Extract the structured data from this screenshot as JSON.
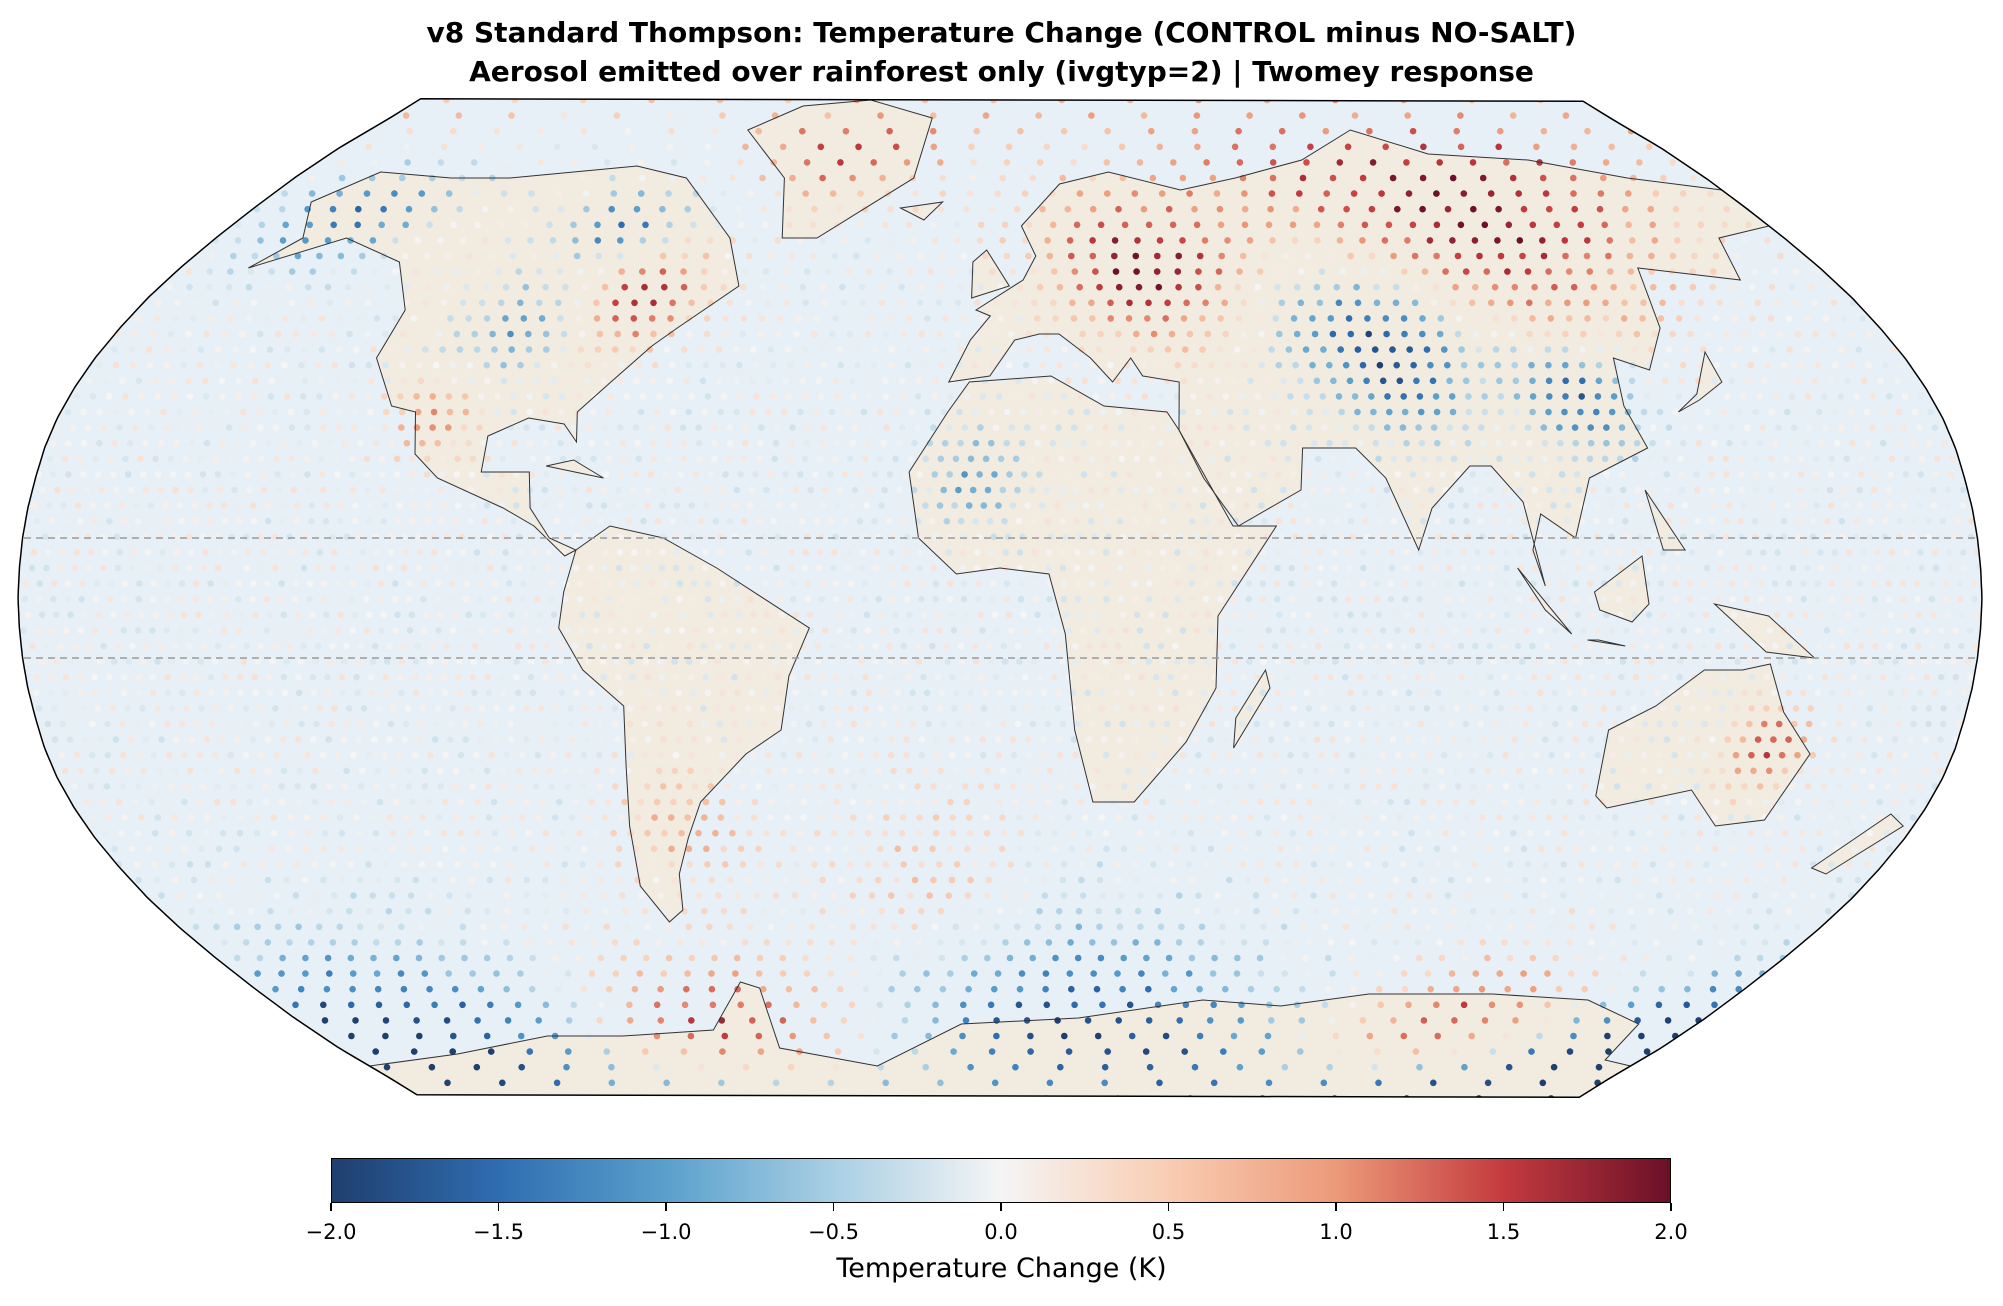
{
  "title_line1": "v8 Standard Thompson: Temperature Change (CONTROL minus NO-SALT)",
  "title_line2": "Aerosol emitted over rainforest only (ivgtyp=2) | Twomey response",
  "colorbar": {
    "label": "Temperature Change (K)",
    "colormap": "RdBu_r",
    "range": [
      -2.0,
      2.0
    ],
    "ticks": [
      "−2.0",
      "−1.5",
      "−1.0",
      "−0.5",
      "0.0",
      "0.5",
      "1.0",
      "1.5",
      "2.0"
    ],
    "stops": [
      "#1f3f6e",
      "#2f6db1",
      "#5aa0cc",
      "#a9cfe4",
      "#f5f5f5",
      "#f9cdb3",
      "#ec9a79",
      "#c43b3f",
      "#6b1028"
    ]
  },
  "chart_data": {
    "type": "scatter",
    "projection": "Robinson",
    "reference_lines_lat": [
      -10,
      10
    ],
    "land_color": "#f1ebe0",
    "ocean_color": "#e8f0f7",
    "regional_anomalies_K": [
      {
        "region": "Eastern Europe / Western Russia",
        "lon": 32,
        "lat": 55,
        "value": 2.0,
        "radius": 13
      },
      {
        "region": "Northern Siberia",
        "lon": 110,
        "lat": 64,
        "value": 2.0,
        "radius": 22
      },
      {
        "region": "Central Asia",
        "lon": 78,
        "lat": 42,
        "value": -2.0,
        "radius": 14
      },
      {
        "region": "Eastern China",
        "lon": 112,
        "lat": 34,
        "value": -1.7,
        "radius": 10
      },
      {
        "region": "Eastern Canada",
        "lon": -75,
        "lat": 50,
        "value": 1.8,
        "radius": 8
      },
      {
        "region": "Hudson Bay",
        "lon": -88,
        "lat": 62,
        "value": -1.5,
        "radius": 6
      },
      {
        "region": "Central USA",
        "lon": -100,
        "lat": 45,
        "value": -1.0,
        "radius": 8
      },
      {
        "region": "Southwest USA / Mexico",
        "lon": -108,
        "lat": 30,
        "value": 0.9,
        "radius": 8
      },
      {
        "region": "Alaska",
        "lon": -155,
        "lat": 64,
        "value": -1.5,
        "radius": 9
      },
      {
        "region": "Greenland",
        "lon": -40,
        "lat": 74,
        "value": 1.5,
        "radius": 8
      },
      {
        "region": "Western Sahara",
        "lon": -5,
        "lat": 20,
        "value": -1.0,
        "radius": 8
      },
      {
        "region": "Eastern Australia",
        "lon": 145,
        "lat": -25,
        "value": 1.5,
        "radius": 7
      },
      {
        "region": "Southern South America",
        "lon": -62,
        "lat": -38,
        "value": 0.8,
        "radius": 11
      },
      {
        "region": "South Atlantic",
        "lon": -15,
        "lat": -45,
        "value": 0.5,
        "radius": 14
      },
      {
        "region": "Antarctica Pacific sector",
        "lon": -150,
        "lat": -75,
        "value": -2.0,
        "radius": 18
      },
      {
        "region": "Antarctic Peninsula",
        "lon": -70,
        "lat": -75,
        "value": 2.0,
        "radius": 14
      },
      {
        "region": "East Antarctica (0-60E)",
        "lon": 20,
        "lat": -75,
        "value": -2.0,
        "radius": 20
      },
      {
        "region": "East Antarctica (100-140E)",
        "lon": 120,
        "lat": -72,
        "value": 1.6,
        "radius": 12
      },
      {
        "region": "Ross sector",
        "lon": 165,
        "lat": -75,
        "value": -1.8,
        "radius": 10
      }
    ]
  }
}
